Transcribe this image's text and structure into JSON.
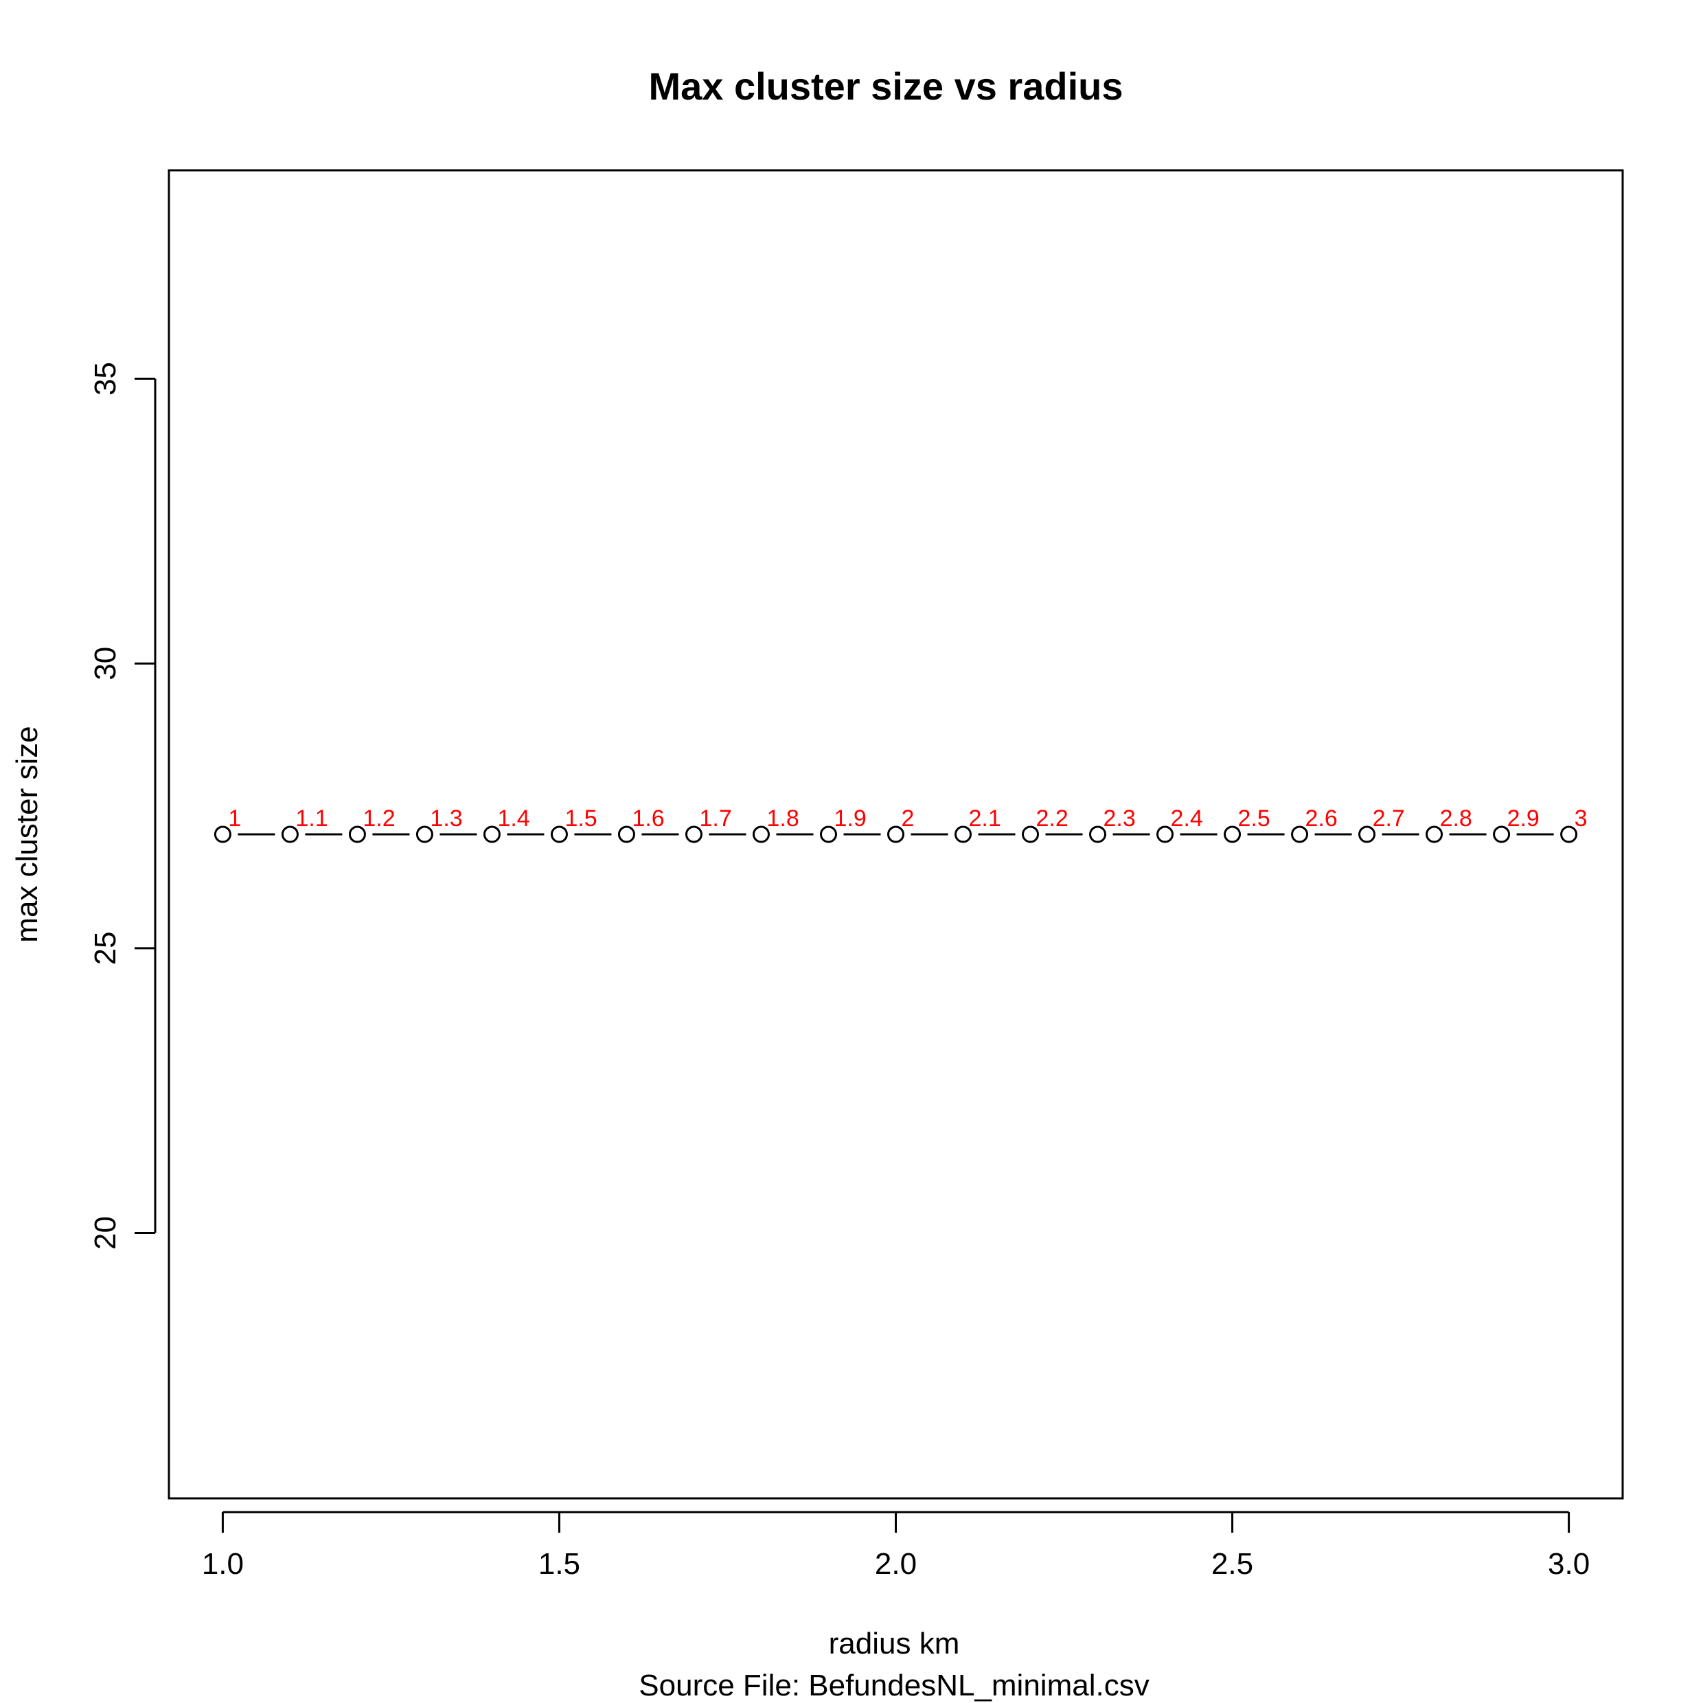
{
  "chart_data": {
    "type": "line",
    "title": "Max cluster size vs radius",
    "xlabel": "radius km",
    "subtitle": "Source File:  BefundesNL_minimal.csv",
    "ylabel": "max cluster size",
    "xlim": [
      0.92,
      3.08
    ],
    "ylim": [
      15.34,
      38.66
    ],
    "x_ticks": [
      1.0,
      1.5,
      2.0,
      2.5,
      3.0
    ],
    "x_tick_labels": [
      "1.0",
      "1.5",
      "2.0",
      "2.5",
      "3.0"
    ],
    "y_ticks": [
      20,
      25,
      30,
      35
    ],
    "y_tick_labels": [
      "20",
      "25",
      "30",
      "35"
    ],
    "grid": false,
    "line_style": "overplotted (points with line segments)",
    "marker": "open circle",
    "x": [
      1.0,
      1.1,
      1.2,
      1.3,
      1.4,
      1.5,
      1.6,
      1.7,
      1.8,
      1.9,
      2.0,
      2.1,
      2.2,
      2.3,
      2.4,
      2.5,
      2.6,
      2.7,
      2.8,
      2.9,
      3.0
    ],
    "y": [
      27,
      27,
      27,
      27,
      27,
      27,
      27,
      27,
      27,
      27,
      27,
      27,
      27,
      27,
      27,
      27,
      27,
      27,
      27,
      27,
      27
    ],
    "point_labels": [
      "1",
      "1.1",
      "1.2",
      "1.3",
      "1.4",
      "1.5",
      "1.6",
      "1.7",
      "1.8",
      "1.9",
      "2",
      "2.1",
      "2.2",
      "2.3",
      "2.4",
      "2.5",
      "2.6",
      "2.7",
      "2.8",
      "2.9",
      "3"
    ],
    "point_label_color": "#ff0000",
    "line_color": "#000000"
  }
}
